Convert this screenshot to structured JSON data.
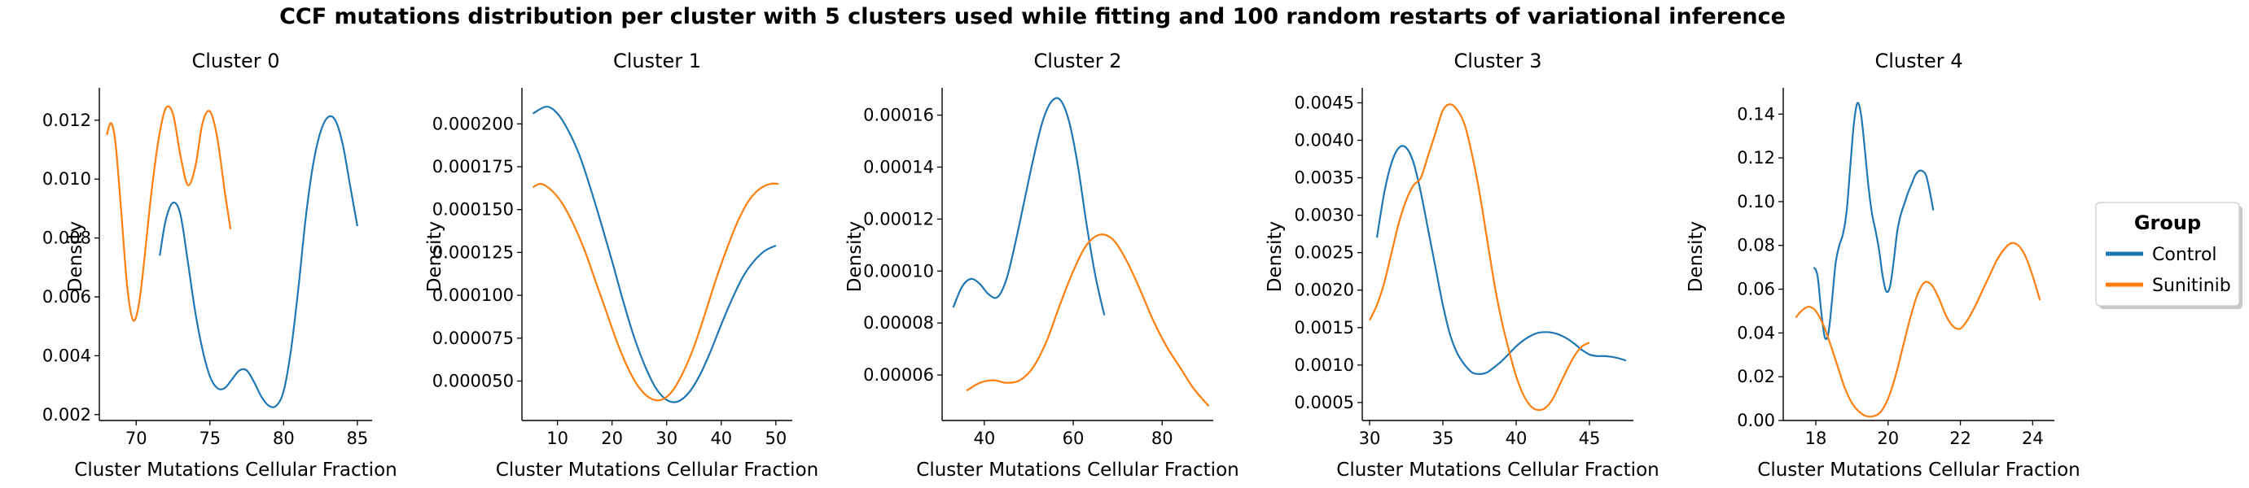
{
  "suptitle": "CCF mutations distribution per cluster with 5 clusters used while fitting and 100 random restarts of variational inference",
  "legend": {
    "title": "Group",
    "placement": "right",
    "entries": [
      {
        "name": "Control",
        "color": "#1f77b4"
      },
      {
        "name": "Sunitinib",
        "color": "#ff7f0e"
      }
    ]
  },
  "chart_data": [
    {
      "type": "line",
      "title": "Cluster 0",
      "xlabel": "Cluster Mutations Cellular Fraction",
      "ylabel": "Density",
      "xlim": [
        67.5,
        86
      ],
      "ylim": [
        0.0018,
        0.0131
      ],
      "xticks": [
        70,
        75,
        80,
        85
      ],
      "xticklabels": [
        "70",
        "75",
        "80",
        "85"
      ],
      "yticks": [
        0.002,
        0.004,
        0.006,
        0.008,
        0.01,
        0.012
      ],
      "yticklabels": [
        "0.002",
        "0.004",
        "0.006",
        "0.008",
        "0.010",
        "0.012"
      ],
      "series": [
        {
          "name": "Control",
          "color": "#1f77b4",
          "x": [
            71.6,
            72.0,
            72.5,
            73.0,
            73.5,
            74.0,
            74.5,
            75.0,
            75.5,
            76.0,
            76.5,
            77.0,
            77.5,
            78.0,
            78.5,
            79.0,
            79.5,
            80.0,
            80.5,
            81.0,
            81.5,
            82.0,
            82.5,
            83.0,
            83.5,
            84.0,
            84.5,
            85.0
          ],
          "y": [
            0.0074,
            0.0086,
            0.0092,
            0.0088,
            0.0072,
            0.0055,
            0.0042,
            0.0033,
            0.0029,
            0.0029,
            0.0032,
            0.0035,
            0.0035,
            0.0031,
            0.0026,
            0.0023,
            0.0023,
            0.0028,
            0.0042,
            0.0063,
            0.0087,
            0.0105,
            0.0116,
            0.0121,
            0.012,
            0.0112,
            0.0098,
            0.0084
          ]
        },
        {
          "name": "Sunitinib",
          "color": "#ff7f0e",
          "x": [
            68.0,
            68.3,
            68.6,
            69.0,
            69.4,
            69.8,
            70.2,
            70.6,
            71.0,
            71.5,
            72.0,
            72.5,
            73.0,
            73.5,
            74.0,
            74.5,
            75.0,
            75.5,
            76.0,
            76.4
          ],
          "y": [
            0.0115,
            0.0119,
            0.0112,
            0.0088,
            0.0063,
            0.0052,
            0.0058,
            0.0075,
            0.0094,
            0.0113,
            0.0124,
            0.0122,
            0.0108,
            0.0098,
            0.0104,
            0.0119,
            0.0123,
            0.0114,
            0.0096,
            0.0083
          ]
        }
      ]
    },
    {
      "type": "line",
      "title": "Cluster 1",
      "xlabel": "Cluster Mutations Cellular Fraction",
      "ylabel": "Density",
      "xlim": [
        3.5,
        53
      ],
      "ylim": [
        2.7e-05,
        0.000221
      ],
      "xticks": [
        10,
        20,
        30,
        40,
        50
      ],
      "xticklabels": [
        "10",
        "20",
        "30",
        "40",
        "50"
      ],
      "yticks": [
        5e-05,
        7.5e-05,
        0.0001,
        0.000125,
        0.00015,
        0.000175,
        0.0002
      ],
      "yticklabels": [
        "0.000050",
        "0.000075",
        "0.000100",
        "0.000125",
        "0.000150",
        "0.000175",
        "0.000200"
      ],
      "series": [
        {
          "name": "Control",
          "color": "#1f77b4",
          "x": [
            5.5,
            8,
            10,
            12,
            14,
            16,
            18,
            20,
            22,
            24,
            26,
            28,
            30,
            32,
            34,
            36,
            38,
            40,
            42,
            44,
            46,
            48,
            50
          ],
          "y": [
            0.000206,
            0.00021,
            0.000206,
            0.000196,
            0.000182,
            0.000163,
            0.000142,
            0.00012,
            9.7e-05,
            7.6e-05,
            5.9e-05,
            4.6e-05,
            3.9e-05,
            3.8e-05,
            4.3e-05,
            5.3e-05,
            6.7e-05,
            8.3e-05,
            9.8e-05,
            0.000111,
            0.00012,
            0.000126,
            0.000129
          ]
        },
        {
          "name": "Sunitinib",
          "color": "#ff7f0e",
          "x": [
            5.5,
            7,
            9,
            11,
            13,
            15,
            17,
            19,
            21,
            23,
            25,
            27,
            29,
            31,
            33,
            35,
            37,
            39,
            41,
            43,
            45,
            47,
            49,
            50.5
          ],
          "y": [
            0.000163,
            0.000165,
            0.000161,
            0.000153,
            0.000141,
            0.000126,
            0.000108,
            9e-05,
            7.2e-05,
            5.7e-05,
            4.6e-05,
            4e-05,
            3.9e-05,
            4.4e-05,
            5.5e-05,
            7e-05,
            8.9e-05,
            0.000109,
            0.000127,
            0.000143,
            0.000155,
            0.000162,
            0.000165,
            0.000165
          ]
        }
      ]
    },
    {
      "type": "line",
      "title": "Cluster 2",
      "xlabel": "Cluster Mutations Cellular Fraction",
      "ylabel": "Density",
      "xlim": [
        30.5,
        91.5
      ],
      "ylim": [
        4.25e-05,
        0.0001705
      ],
      "xticks": [
        40,
        60,
        80
      ],
      "xticklabels": [
        "40",
        "60",
        "80"
      ],
      "yticks": [
        6e-05,
        8e-05,
        0.0001,
        0.00012,
        0.00014,
        0.00016
      ],
      "yticklabels": [
        "0.00006",
        "0.00008",
        "0.00010",
        "0.00012",
        "0.00014",
        "0.00016"
      ],
      "series": [
        {
          "name": "Control",
          "color": "#1f77b4",
          "x": [
            33,
            35,
            37,
            39,
            41,
            43,
            45,
            47,
            49,
            51,
            53,
            55,
            57,
            59,
            61,
            63,
            65,
            67
          ],
          "y": [
            8.6e-05,
            9.4e-05,
            9.7e-05,
            9.5e-05,
            9.1e-05,
            9e-05,
            9.7e-05,
            0.000111,
            0.000127,
            0.000143,
            0.000157,
            0.000165,
            0.000166,
            0.000158,
            0.000141,
            0.000118,
            9.8e-05,
            8.3e-05
          ]
        },
        {
          "name": "Sunitinib",
          "color": "#ff7f0e",
          "x": [
            36,
            39,
            42,
            45,
            48,
            51,
            54,
            57,
            60,
            63,
            66,
            69,
            72,
            75,
            78,
            81,
            84,
            87,
            90.5
          ],
          "y": [
            5.4e-05,
            5.7e-05,
            5.8e-05,
            5.7e-05,
            5.8e-05,
            6.3e-05,
            7.3e-05,
            8.7e-05,
            0.0001,
            0.00011,
            0.000114,
            0.000112,
            0.000104,
            9.3e-05,
            8.1e-05,
            7.1e-05,
            6.3e-05,
            5.5e-05,
            4.8e-05
          ]
        }
      ]
    },
    {
      "type": "line",
      "title": "Cluster 3",
      "xlabel": "Cluster Mutations Cellular Fraction",
      "ylabel": "Density",
      "xlim": [
        29.5,
        48
      ],
      "ylim": [
        0.00026,
        0.0047
      ],
      "xticks": [
        30,
        35,
        40,
        45
      ],
      "xticklabels": [
        "30",
        "35",
        "40",
        "45"
      ],
      "yticks": [
        0.0005,
        0.001,
        0.0015,
        0.002,
        0.0025,
        0.003,
        0.0035,
        0.004,
        0.0045
      ],
      "yticklabels": [
        "0.0005",
        "0.0010",
        "0.0015",
        "0.0020",
        "0.0025",
        "0.0030",
        "0.0035",
        "0.0040",
        "0.0045"
      ],
      "series": [
        {
          "name": "Control",
          "color": "#1f77b4",
          "x": [
            30.5,
            31,
            31.5,
            32,
            32.5,
            33,
            33.5,
            34,
            34.5,
            35,
            35.5,
            36,
            36.5,
            37,
            37.5,
            38,
            38.5,
            39,
            39.5,
            40,
            40.5,
            41,
            41.5,
            42,
            42.5,
            43,
            43.5,
            44,
            44.5,
            45,
            45.5,
            46,
            46.5,
            47,
            47.5
          ],
          "y": [
            0.0027,
            0.0033,
            0.0037,
            0.0039,
            0.0039,
            0.0037,
            0.0033,
            0.0028,
            0.0023,
            0.0018,
            0.0014,
            0.00115,
            0.001,
            0.0009,
            0.00088,
            0.0009,
            0.00097,
            0.00105,
            0.00115,
            0.00125,
            0.00133,
            0.00139,
            0.00143,
            0.00144,
            0.00143,
            0.0014,
            0.00135,
            0.00128,
            0.0012,
            0.00114,
            0.00112,
            0.00112,
            0.00111,
            0.00109,
            0.00106
          ]
        },
        {
          "name": "Sunitinib",
          "color": "#ff7f0e",
          "x": [
            30.0,
            30.5,
            31.0,
            31.5,
            32.0,
            32.5,
            33.0,
            33.5,
            34.0,
            34.5,
            35.0,
            35.5,
            36.0,
            36.5,
            37.0,
            37.5,
            38.0,
            38.5,
            39.0,
            39.5,
            40.0,
            40.5,
            41.0,
            41.5,
            42.0,
            42.5,
            43.0,
            43.5,
            44.0,
            44.5,
            45.0
          ],
          "y": [
            0.0016,
            0.0018,
            0.0021,
            0.0025,
            0.0029,
            0.0032,
            0.0034,
            0.0035,
            0.0038,
            0.0041,
            0.0044,
            0.00448,
            0.0044,
            0.0042,
            0.0038,
            0.0033,
            0.0027,
            0.0021,
            0.0016,
            0.0012,
            0.00085,
            0.0006,
            0.00045,
            0.0004,
            0.00043,
            0.00055,
            0.00075,
            0.00095,
            0.00113,
            0.00125,
            0.0013
          ]
        }
      ]
    },
    {
      "type": "line",
      "title": "Cluster 4",
      "xlabel": "Cluster Mutations Cellular Fraction",
      "ylabel": "Density",
      "xlim": [
        17.1,
        24.6
      ],
      "ylim": [
        0.0,
        0.152
      ],
      "xticks": [
        18,
        20,
        22,
        24
      ],
      "xticklabels": [
        "18",
        "20",
        "22",
        "24"
      ],
      "yticks": [
        0.0,
        0.02,
        0.04,
        0.06,
        0.08,
        0.1,
        0.12,
        0.14
      ],
      "yticklabels": [
        "0.00",
        "0.02",
        "0.04",
        "0.06",
        "0.08",
        "0.10",
        "0.12",
        "0.14"
      ],
      "series": [
        {
          "name": "Control",
          "color": "#1f77b4",
          "x": [
            17.95,
            18.05,
            18.15,
            18.25,
            18.35,
            18.45,
            18.55,
            18.65,
            18.75,
            18.85,
            18.95,
            19.05,
            19.15,
            19.25,
            19.35,
            19.45,
            19.55,
            19.65,
            19.75,
            19.85,
            19.95,
            20.05,
            20.15,
            20.25,
            20.35,
            20.45,
            20.55,
            20.65,
            20.75,
            20.85,
            20.95,
            21.05,
            21.15,
            21.25
          ],
          "y": [
            0.07,
            0.066,
            0.05,
            0.038,
            0.04,
            0.055,
            0.072,
            0.08,
            0.085,
            0.095,
            0.115,
            0.135,
            0.145,
            0.14,
            0.125,
            0.108,
            0.095,
            0.087,
            0.078,
            0.066,
            0.059,
            0.061,
            0.072,
            0.086,
            0.094,
            0.099,
            0.104,
            0.108,
            0.112,
            0.114,
            0.114,
            0.112,
            0.105,
            0.096
          ]
        },
        {
          "name": "Sunitinib",
          "color": "#ff7f0e",
          "x": [
            17.45,
            17.6,
            17.8,
            18.0,
            18.2,
            18.4,
            18.6,
            18.8,
            19.0,
            19.2,
            19.4,
            19.6,
            19.8,
            20.0,
            20.2,
            20.4,
            20.6,
            20.8,
            21.0,
            21.2,
            21.4,
            21.6,
            21.8,
            22.0,
            22.2,
            22.4,
            22.6,
            22.8,
            23.0,
            23.2,
            23.4,
            23.6,
            23.8,
            24.0,
            24.2
          ],
          "y": [
            0.047,
            0.05,
            0.052,
            0.05,
            0.044,
            0.035,
            0.025,
            0.015,
            0.008,
            0.004,
            0.002,
            0.002,
            0.004,
            0.01,
            0.02,
            0.033,
            0.046,
            0.057,
            0.063,
            0.062,
            0.056,
            0.048,
            0.043,
            0.042,
            0.046,
            0.052,
            0.059,
            0.066,
            0.073,
            0.078,
            0.081,
            0.08,
            0.075,
            0.066,
            0.055
          ]
        }
      ]
    }
  ]
}
